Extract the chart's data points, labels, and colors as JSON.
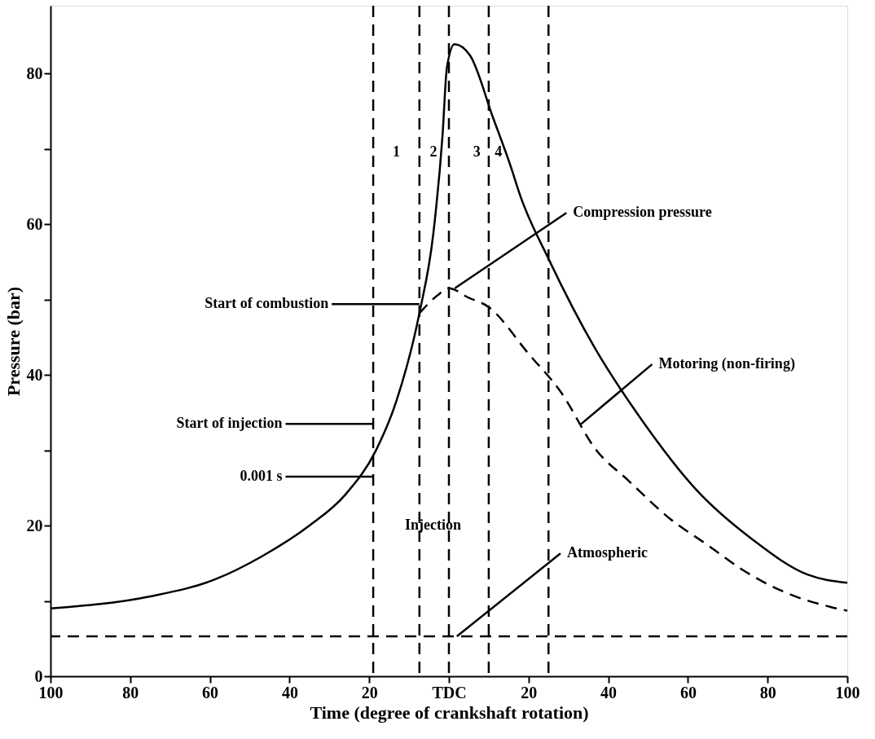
{
  "chart_data": {
    "type": "line",
    "xlabel": "Time (degree of crankshaft rotation)",
    "ylabel": "Pressure (bar)",
    "xlim": [
      -100,
      100
    ],
    "ylim": [
      0,
      89
    ],
    "xticks": [
      {
        "value": -100,
        "label": "100"
      },
      {
        "value": -80,
        "label": "80"
      },
      {
        "value": -60,
        "label": "60"
      },
      {
        "value": -40,
        "label": "40"
      },
      {
        "value": -20,
        "label": "20"
      },
      {
        "value": 0,
        "label": "TDC"
      },
      {
        "value": 20,
        "label": "20"
      },
      {
        "value": 40,
        "label": "40"
      },
      {
        "value": 60,
        "label": "60"
      },
      {
        "value": 80,
        "label": "80"
      },
      {
        "value": 100,
        "label": "100"
      }
    ],
    "yticks": [
      0,
      {
        "value": 10,
        "label": null
      },
      20,
      {
        "value": 30,
        "label": null
      },
      40,
      {
        "value": 50,
        "label": null
      },
      60,
      {
        "value": 70,
        "label": null
      },
      80
    ],
    "series": [
      {
        "color": "#000000",
        "line_style": "solid",
        "x": [
          -100,
          -75,
          -58.5,
          -47,
          -35,
          -26,
          -18.3,
          -13.2,
          -7.4,
          -3.9,
          -1.6,
          -0.5,
          1.4,
          5.3,
          11.1,
          15.3,
          18.1,
          25.1,
          36.7,
          48.3,
          62.2,
          76.1,
          90,
          100
        ],
        "values": [
          9,
          10.6,
          12.9,
          15.9,
          20,
          24.1,
          30,
          36.5,
          48.2,
          58.8,
          71.8,
          80.8,
          83.9,
          82.4,
          74.1,
          68,
          63.5,
          55.3,
          43.5,
          34.1,
          24.7,
          18.2,
          13.5,
          12.4
        ]
      },
      {
        "color": "#000000",
        "line_style": "dashed",
        "x": [
          -7.4,
          -3,
          0,
          1.9,
          4,
          10,
          20,
          28,
          37,
          45,
          55.5,
          65,
          73.5,
          85,
          95.8,
          100
        ],
        "values": [
          48.2,
          50.5,
          51.5,
          51.2,
          50.5,
          49,
          42.8,
          37.8,
          30,
          26,
          20.9,
          17.4,
          14.2,
          11,
          9.2,
          8.7
        ]
      }
    ],
    "ref_lines": [
      {
        "axis": "y",
        "value": 5.3,
        "line_style": "dashed",
        "color": "#000000"
      },
      {
        "axis": "x",
        "value": -19,
        "line_style": "dashed",
        "color": "#000000"
      },
      {
        "axis": "x",
        "value": -7.4,
        "line_style": "dashed",
        "color": "#000000"
      },
      {
        "axis": "x",
        "value": 0,
        "line_style": "dashed",
        "color": "#000000"
      },
      {
        "axis": "x",
        "value": 10,
        "line_style": "dashed",
        "color": "#000000"
      },
      {
        "axis": "x",
        "value": 25,
        "line_style": "dashed",
        "color": "#000000"
      }
    ],
    "annotations": [
      {
        "text": "Start of combustion",
        "x": -7.4,
        "y": 49.4
      },
      {
        "text": "Start of injection",
        "x": -19,
        "y": 33.5
      },
      {
        "text": "0.001 s",
        "x": -19,
        "y": 26.5
      },
      "Injection",
      {
        "text": "Compression pressure",
        "x": 1.5,
        "y": 51.5
      },
      {
        "text": "Motoring (non-firing)",
        "x": 33,
        "y": 33.4
      },
      {
        "text": "Atmospheric",
        "x": 2,
        "y": 5.3
      },
      "1",
      "2",
      "3",
      "4"
    ]
  }
}
